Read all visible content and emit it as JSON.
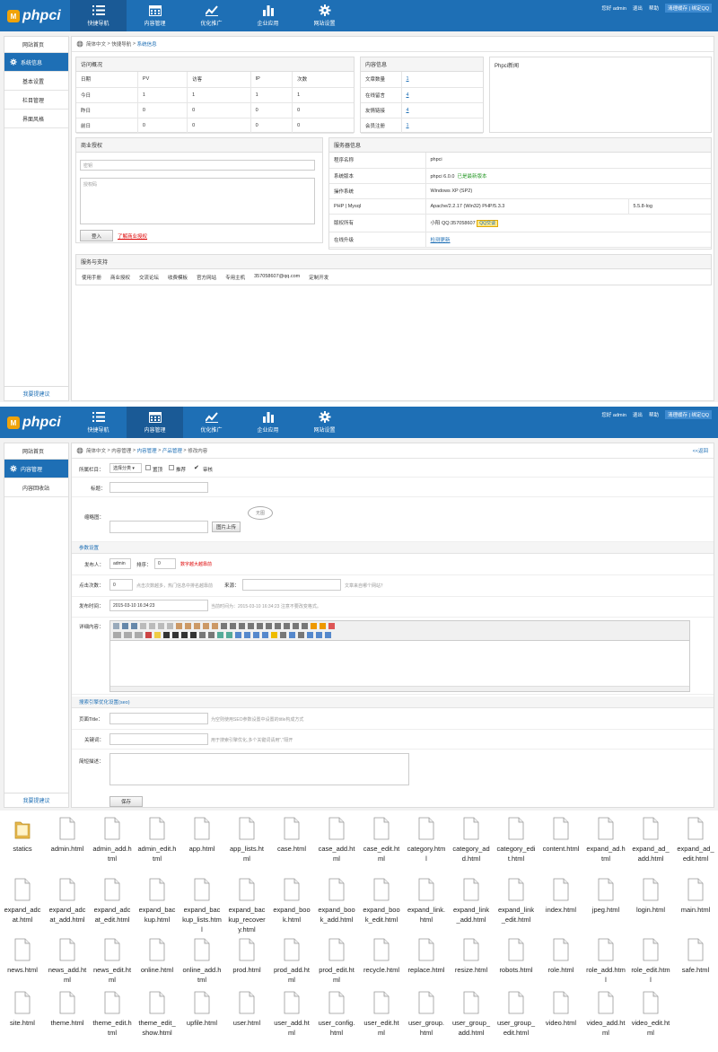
{
  "app": {
    "logo_text": "phpci",
    "logo_badge": "M"
  },
  "nav": {
    "tabs": [
      {
        "label": "快捷导航",
        "icon": "list-icon"
      },
      {
        "label": "内容管理",
        "icon": "calendar-icon"
      },
      {
        "label": "优化推广",
        "icon": "trend-icon"
      },
      {
        "label": "企业应用",
        "icon": "bar-chart-icon"
      },
      {
        "label": "网站设置",
        "icon": "gear-icon"
      }
    ],
    "greeting": "您好 admin",
    "logout": "退出",
    "help": "帮助",
    "cache_qq": "清理缓存 | 绑定QQ"
  },
  "screen1": {
    "sidebar": {
      "items": [
        "网站首页",
        "系统信息",
        "基本设置",
        "栏目管理",
        "界面风格"
      ],
      "active": "系统信息",
      "bottom": "我要提建议"
    },
    "crumb": {
      "a": "简体中文",
      "sep": ">",
      "b": "快捷导航",
      "c": "系统信息"
    },
    "visits": {
      "title": "访问概况",
      "headers": [
        "日期",
        "PV",
        "访客",
        "IP",
        "次数"
      ],
      "rows": [
        [
          "今日",
          "1",
          "1",
          "1",
          "1"
        ],
        [
          "昨日",
          "0",
          "0",
          "0",
          "0"
        ],
        [
          "前日",
          "0",
          "0",
          "0",
          "0"
        ]
      ]
    },
    "content_info": {
      "title": "内容信息",
      "rows": [
        {
          "label": "文章数量",
          "value": "1"
        },
        {
          "label": "在线留言",
          "value": "4"
        },
        {
          "label": "友情链接",
          "value": "4"
        },
        {
          "label": "会员注册",
          "value": "1"
        }
      ]
    },
    "news": {
      "title": "Phpci新闻"
    },
    "license": {
      "title": "商业授权",
      "key_placeholder": "密钥",
      "code_placeholder": "授权码",
      "login_btn": "登入",
      "learn_link": "了解商业授权"
    },
    "server": {
      "title": "服务器信息",
      "rows": [
        {
          "label": "程序名称",
          "value": "phpci",
          "extra": ""
        },
        {
          "label": "系统版本",
          "value": "phpci 6.0.0",
          "extra": "已是最新版本"
        },
        {
          "label": "操作系统",
          "value": "Windows XP (SP2)",
          "extra": ""
        },
        {
          "label": "PHP | Mysql",
          "value": "Apache/2.2.17 (Win32) PHP/5.3.3",
          "extra": "5.5.8-log"
        },
        {
          "label": "版权所有",
          "value": "小阳 QQ:357058607",
          "extra": "QQ交谈"
        },
        {
          "label": "在线升级",
          "value": "检测更新",
          "extra": ""
        }
      ]
    },
    "support": {
      "title": "服务与支持",
      "links": [
        "使用手册",
        "商业授权",
        "交流论坛",
        "收费模板",
        "官方网站",
        "专用主机",
        "357058607@qq.com",
        "定制开发"
      ]
    }
  },
  "screen2": {
    "sidebar": {
      "items": [
        "网站首页",
        "内容管理",
        "内容回收站"
      ],
      "active": "内容管理",
      "bottom": "我要提建议"
    },
    "crumb": {
      "a": "简体中文",
      "b": "内容管理",
      "c": "内容管理",
      "d": "产品管理",
      "e": "修改内容",
      "back": "<<返回"
    },
    "form": {
      "category_label": "所属栏目：",
      "category_value": "选择分类",
      "top_label": "置顶",
      "recommend_label": "推荐",
      "audit_label": "审核",
      "title_label": "标题：",
      "thumb_label": "缩略图：",
      "upload_btn": "图片上传",
      "stamp": "无图",
      "params_section": "参数设置",
      "author_label": "发布人：",
      "author_value": "admin",
      "order_label": "排序：",
      "order_value": "0",
      "order_hint": "数字越大越靠前",
      "views_label": "点击次数：",
      "views_value": "0",
      "views_hint": "点击次数越多，热门信息中排名越靠前",
      "source_label": "来源：",
      "source_hint": "文章来自哪个网站？",
      "date_label": "发布时间：",
      "date_value": "2015-03-10 16:34:23",
      "date_hint": "当前时间为：2015-03-10 16:34:23 注意不要改变格式。",
      "detail_label": "详细内容：",
      "seo_section": "搜索引擎优化设置(seo)",
      "page_title_label": "页面Title：",
      "page_title_hint": "为空则使用SEO参数设置中设置的title构成方式",
      "keywords_label": "关键词：",
      "keywords_hint": "用于搜索引擎优化,多个关键词请用\",\"隔开",
      "desc_label": "简短描述：",
      "save_btn": "保存"
    }
  },
  "files": [
    "statics",
    "admin.html",
    "admin_add.html",
    "admin_edit.html",
    "app.html",
    "app_lists.html",
    "case.html",
    "case_add.html",
    "case_edit.html",
    "category.html",
    "category_add.html",
    "category_edit.html",
    "content.html",
    "expand_ad.html",
    "expand_ad_add.html",
    "expand_ad_edit.html",
    "expand_adcat.html",
    "expand_adcat_add.html",
    "expand_adcat_edit.html",
    "expand_backup.html",
    "expand_backup_lists.html",
    "expand_backup_recovery.html",
    "expand_book.html",
    "expand_book_add.html",
    "expand_book_edit.html",
    "expand_link.html",
    "expand_link_add.html",
    "expand_link_edit.html",
    "index.html",
    "jpeg.html",
    "login.html",
    "main.html",
    "news.html",
    "news_add.html",
    "news_edit.html",
    "online.html",
    "online_add.html",
    "prod.html",
    "prod_add.html",
    "prod_edit.html",
    "recycle.html",
    "replace.html",
    "resize.html",
    "robots.html",
    "role.html",
    "role_add.html",
    "role_edit.html",
    "safe.html",
    "site.html",
    "theme.html",
    "theme_edit.html",
    "theme_edit_show.html",
    "upfile.html",
    "user.html",
    "user_add.html",
    "user_config.html",
    "user_edit.html",
    "user_group.html",
    "user_group_add.html",
    "user_group_edit.html",
    "video.html",
    "video_add.html",
    "video_edit.html"
  ],
  "colors": {
    "header": "#1e6fb5",
    "header_active": "#1a5a96",
    "accent_red": "#dd0000",
    "accent_green": "#2a9a2a",
    "folder": "#e8b84a"
  }
}
